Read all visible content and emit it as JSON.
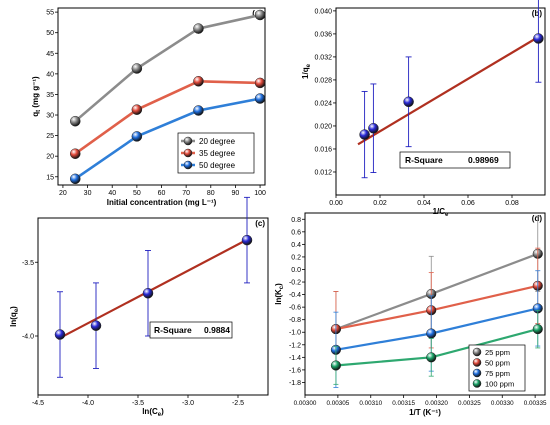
{
  "chart_data": [
    {
      "type": "line",
      "panel_label": "(a)",
      "xlabel": "Initial concentration (mg L⁻¹)",
      "ylabel": "q",
      "ylabel_sub": "t",
      "ylabel_unit": "(mg g⁻¹)",
      "xlim": [
        18,
        102
      ],
      "ylim": [
        13,
        56
      ],
      "xticks": [
        20,
        30,
        40,
        50,
        60,
        70,
        80,
        90,
        100
      ],
      "yticks": [
        15,
        20,
        25,
        30,
        35,
        40,
        45,
        50,
        55
      ],
      "grid": false,
      "legend_position": "right",
      "series": [
        {
          "name": "20 degree",
          "x": [
            25,
            50,
            75,
            100
          ],
          "y": [
            28.5,
            41.3,
            51.0,
            54.3
          ],
          "color": "#8c8c8c",
          "marker": "#7a7a7a"
        },
        {
          "name": "35 degree",
          "x": [
            25,
            50,
            75,
            100
          ],
          "y": [
            20.6,
            31.3,
            38.2,
            37.8
          ],
          "color": "#e0604a",
          "marker": "#d9463a"
        },
        {
          "name": "50 degree",
          "x": [
            25,
            50,
            75,
            100
          ],
          "y": [
            14.5,
            24.8,
            31.1,
            34.0
          ],
          "color": "#2f7fd8",
          "marker": "#1e6fd0"
        }
      ]
    },
    {
      "type": "scatter",
      "panel_label": "(b)",
      "xlabel": "1/C",
      "xlabel_sub": "e",
      "ylabel": "1/q",
      "ylabel_sub": "e",
      "xlim": [
        0.0,
        0.095
      ],
      "ylim": [
        0.008,
        0.0405
      ],
      "xticks": [
        0.0,
        0.02,
        0.04,
        0.06,
        0.08
      ],
      "yticks": [
        0.012,
        0.016,
        0.02,
        0.024,
        0.028,
        0.032,
        0.036,
        0.04
      ],
      "grid": false,
      "annotation": {
        "label": "R-Square",
        "value": "0.98969"
      },
      "points": {
        "x": [
          0.013,
          0.017,
          0.033,
          0.092
        ],
        "y": [
          0.0185,
          0.0196,
          0.0242,
          0.0352
        ],
        "yerr": [
          0.0075,
          0.0077,
          0.0078,
          0.0076
        ]
      },
      "fit_line": {
        "x": [
          0.01,
          0.093
        ],
        "y": [
          0.0168,
          0.0357
        ]
      }
    },
    {
      "type": "scatter",
      "panel_label": "(c)",
      "xlabel": "ln(C",
      "xlabel_sub": "e",
      "xlabel_end": ")",
      "ylabel": "ln(q",
      "ylabel_sub": "e",
      "ylabel_end": ")",
      "xlim": [
        -4.5,
        -2.2
      ],
      "ylim": [
        -4.4,
        -3.2
      ],
      "xticks": [
        -4.5,
        -4.0,
        -3.5,
        -3.0,
        -2.5
      ],
      "yticks": [
        -4.0,
        -3.5
      ],
      "grid": false,
      "annotation": {
        "label": "R-Square",
        "value": "0.9884"
      },
      "points": {
        "x": [
          -4.28,
          -3.92,
          -3.4,
          -2.41
        ],
        "y": [
          -3.99,
          -3.93,
          -3.71,
          -3.35
        ],
        "yerr": [
          0.29,
          0.29,
          0.29,
          0.29
        ]
      },
      "fit_line": {
        "x": [
          -4.3,
          -2.39
        ],
        "y": [
          -4.02,
          -3.34
        ]
      }
    },
    {
      "type": "scatter",
      "panel_label": "(d)",
      "xlabel": "1/T (K⁻¹)",
      "ylabel": "ln(K",
      "ylabel_sub": "c",
      "ylabel_end": ")",
      "xlim": [
        0.003,
        0.003365
      ],
      "ylim": [
        -2.0,
        0.9
      ],
      "xticks": [
        "0.00300",
        "0.00305",
        "0.00310",
        "0.00315",
        "0.00320",
        "0.00325",
        "0.00330",
        "0.00335"
      ],
      "yticks": [
        0.8,
        0.6,
        0.4,
        0.2,
        0.0,
        -0.2,
        -0.4,
        -0.6,
        -0.8,
        -1.0,
        -1.2,
        -1.4,
        -1.6,
        -1.8
      ],
      "grid": false,
      "legend_position": "bottom-right",
      "series": [
        {
          "name": "25 ppm",
          "x": [
            0.003047,
            0.003192,
            0.003354
          ],
          "y": [
            -0.95,
            -0.39,
            0.25
          ],
          "yerr": 0.6,
          "color": "#8c8c8c",
          "marker": "#7a7a7a"
        },
        {
          "name": "50 ppm",
          "x": [
            0.003047,
            0.003192,
            0.003354
          ],
          "y": [
            -0.95,
            -0.65,
            -0.26
          ],
          "yerr": 0.6,
          "color": "#e0604a",
          "marker": "#d9463a"
        },
        {
          "name": "75 ppm",
          "x": [
            0.003047,
            0.003192,
            0.003354
          ],
          "y": [
            -1.28,
            -1.02,
            -0.62
          ],
          "yerr": 0.6,
          "color": "#2f7fd8",
          "marker": "#1e6fd0"
        },
        {
          "name": "100 ppm",
          "x": [
            0.003047,
            0.003192,
            0.003354
          ],
          "y": [
            -1.53,
            -1.4,
            -0.95
          ],
          "yerr": 0.3,
          "color": "#2ea870",
          "marker": "#1a9a60"
        }
      ]
    }
  ],
  "style": {
    "fit_color": "#b03020",
    "errorbar_color": "#2020c0",
    "point_color": "#2323d8",
    "axis_color": "#000000"
  }
}
